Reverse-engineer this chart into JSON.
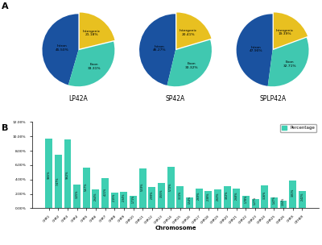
{
  "pie_charts": [
    {
      "label": "LP42A",
      "slices": [
        45.5,
        33.31,
        21.18
      ],
      "slice_labels": [
        "Intron\n45.50%",
        "Exon\n33.31%",
        "Intergenic\n21.18%"
      ],
      "label_radii": [
        0.45,
        0.62,
        0.6
      ],
      "colors": [
        "#1a52a0",
        "#40c8b0",
        "#e8c020"
      ],
      "startangle": 90,
      "explode": [
        0,
        0,
        0.05
      ]
    },
    {
      "label": "SP42A",
      "slices": [
        46.27,
        33.32,
        20.41
      ],
      "slice_labels": [
        "Intron\n46.27%",
        "Exon\n33.32%",
        "Intergenic\n20.41%"
      ],
      "label_radii": [
        0.45,
        0.62,
        0.6
      ],
      "colors": [
        "#1a52a0",
        "#40c8b0",
        "#e8c020"
      ],
      "startangle": 90,
      "explode": [
        0,
        0,
        0.05
      ]
    },
    {
      "label": "SPLP42A",
      "slices": [
        47.9,
        32.71,
        19.39
      ],
      "slice_labels": [
        "Intron\n47.90%",
        "Exon\n32.71%",
        "Intergenic\n19.39%"
      ],
      "label_radii": [
        0.45,
        0.62,
        0.6
      ],
      "colors": [
        "#1a52a0",
        "#40c8b0",
        "#e8c020"
      ],
      "startangle": 90,
      "explode": [
        0,
        0,
        0.05
      ]
    }
  ],
  "bar_chart": {
    "chromosomes": [
      "CHR1",
      "CHR2",
      "CHR3",
      "CHR4",
      "CHR5",
      "CHR6",
      "CHR7",
      "CHR8",
      "CHR9",
      "CHR10",
      "CHR11",
      "CHR12",
      "CHR13",
      "CHR14",
      "CHR15",
      "CHR16",
      "CHR17",
      "CHR18",
      "CHR19",
      "CHR20",
      "CHR21",
      "CHR22",
      "CHR23",
      "CHR24",
      "CHR25",
      "CHR26",
      "CHRX",
      "OTHER"
    ],
    "values": [
      9.65,
      7.47,
      9.62,
      3.25,
      5.67,
      2.64,
      4.21,
      2.15,
      2.34,
      1.71,
      5.59,
      2.99,
      3.55,
      5.72,
      3.11,
      1.54,
      2.69,
      2.38,
      2.63,
      3.02,
      2.68,
      1.78,
      1.27,
      3.16,
      1.47,
      1.04,
      3.81,
      2.42
    ],
    "bar_color": "#3ecfb2",
    "ylabel": "",
    "xlabel": "Chromosome",
    "ylim": [
      0,
      12.0
    ],
    "yticks": [
      0.0,
      2.0,
      4.0,
      6.0,
      8.0,
      10.0,
      12.0
    ],
    "legend_label": "Percentage"
  },
  "panel_a_label": "A",
  "panel_b_label": "B"
}
